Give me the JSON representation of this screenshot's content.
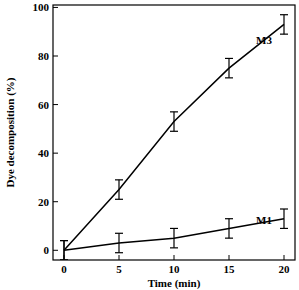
{
  "chart_data": {
    "type": "line",
    "x_label": "Time (min)",
    "y_label": "Dye decomposition (%)",
    "x": [
      0,
      5,
      10,
      15,
      20
    ],
    "series": [
      {
        "name": "M3",
        "color": "#000000",
        "values": [
          0,
          25,
          53,
          75,
          93
        ],
        "errors": [
          4,
          4,
          4,
          4,
          4
        ]
      },
      {
        "name": "M1",
        "color": "#000000",
        "values": [
          0,
          3,
          5,
          9,
          13
        ],
        "errors": [
          4,
          4,
          4,
          4,
          4
        ]
      }
    ],
    "xlim": [
      -1,
      21
    ],
    "xticks": [
      0,
      5,
      10,
      15,
      20
    ],
    "ylim": [
      -4,
      101
    ],
    "yticks": [
      0,
      20,
      40,
      60,
      80,
      100
    ],
    "grid": false
  }
}
